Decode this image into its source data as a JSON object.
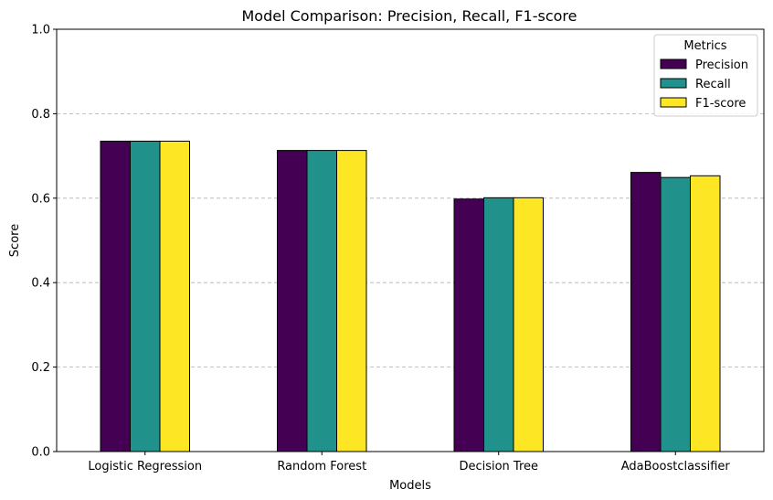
{
  "chart_data": {
    "type": "bar",
    "title": "Model Comparison: Precision, Recall, F1-score",
    "xlabel": "Models",
    "ylabel": "Score",
    "ylim": [
      0,
      1.0
    ],
    "yticks": [
      "0.0",
      "0.2",
      "0.4",
      "0.6",
      "0.8",
      "1.0"
    ],
    "grid": "y-dashed",
    "categories": [
      "Logistic Regression",
      "Random Forest",
      "Decision Tree",
      "AdaBoostclassifier"
    ],
    "series": [
      {
        "name": "Precision",
        "color": "#440154",
        "values": [
          0.735,
          0.713,
          0.598,
          0.661
        ]
      },
      {
        "name": "Recall",
        "color": "#21918c",
        "values": [
          0.735,
          0.713,
          0.601,
          0.649
        ]
      },
      {
        "name": "F1-score",
        "color": "#fde725",
        "values": [
          0.735,
          0.713,
          0.601,
          0.653
        ]
      }
    ],
    "legend": {
      "title": "Metrics",
      "placement": "top-right"
    }
  }
}
